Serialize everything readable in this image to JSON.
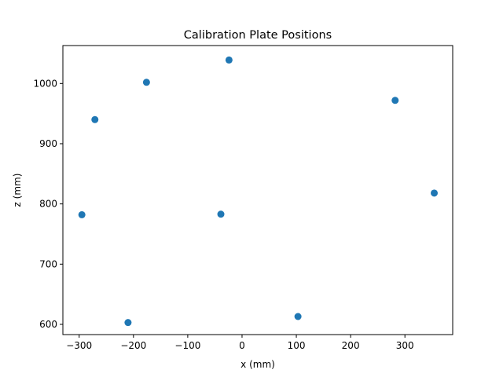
{
  "chart_data": {
    "type": "scatter",
    "title": "Calibration Plate Positions",
    "xlabel": "x (mm)",
    "ylabel": "z (mm)",
    "xlim": [
      -330,
      388
    ],
    "ylim": [
      583,
      1063
    ],
    "xticks": [
      -300,
      -200,
      -100,
      0,
      100,
      200,
      300
    ],
    "xtick_labels": [
      "−300",
      "−200",
      "−100",
      "0",
      "100",
      "200",
      "300"
    ],
    "yticks": [
      600,
      700,
      800,
      900,
      1000
    ],
    "ytick_labels": [
      "600",
      "700",
      "800",
      "900",
      "1000"
    ],
    "grid": false,
    "marker_color": "#1f77b4",
    "points": [
      {
        "x": -295,
        "y": 782
      },
      {
        "x": -271,
        "y": 940
      },
      {
        "x": -176,
        "y": 1002
      },
      {
        "x": -210,
        "y": 603
      },
      {
        "x": -39,
        "y": 783
      },
      {
        "x": -24,
        "y": 1039
      },
      {
        "x": 103,
        "y": 613
      },
      {
        "x": 282,
        "y": 972
      },
      {
        "x": 354,
        "y": 818
      }
    ]
  }
}
